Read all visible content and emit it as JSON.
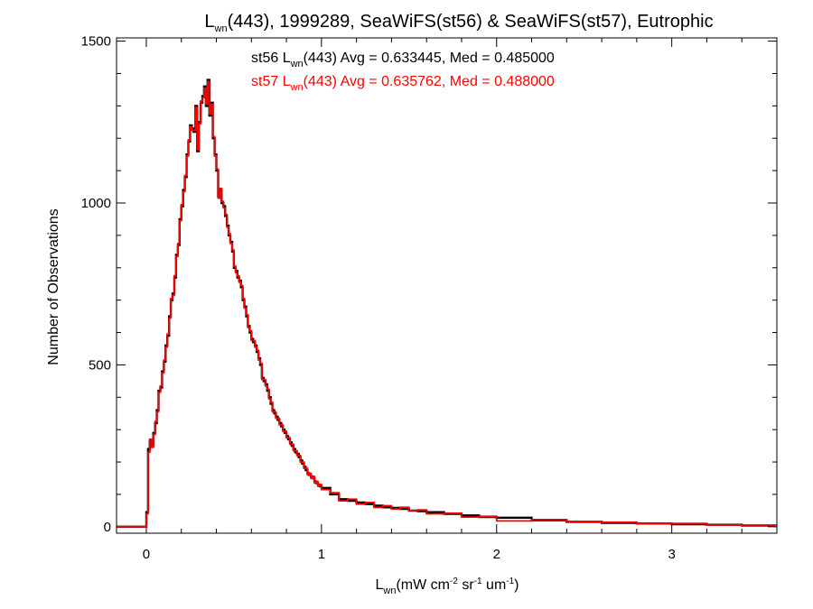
{
  "chart_data": {
    "type": "line",
    "title": {
      "pre": "L",
      "sub": "wn",
      "post": "(443), 1999289, SeaWiFS(st56) & SeaWiFS(st57), Eutrophic"
    },
    "xlabel": {
      "pre": "L",
      "sub": "wn",
      "units": [
        "(mW cm",
        "-2",
        " sr",
        "-1",
        " um",
        "-1",
        ")"
      ]
    },
    "ylabel": "Number of Observations",
    "xlim": [
      -0.17,
      3.6
    ],
    "ylim": [
      -20,
      1510
    ],
    "xticks": [
      0,
      1,
      2,
      3
    ],
    "yticks": [
      0,
      500,
      1000,
      1500
    ],
    "xtick_labels": [
      "0",
      "1",
      "2",
      "3"
    ],
    "ytick_labels": [
      "0",
      "500",
      "1000",
      "1500"
    ],
    "annotations": [
      {
        "pre": "st56 L",
        "sub": "wn",
        "post": "(443) Avg = 0.633445, Med = 0.485000",
        "color": "#000000"
      },
      {
        "pre": "st57 L",
        "sub": "wn",
        "post": "(443) Avg = 0.635762, Med = 0.488000",
        "color": "#ff0000"
      }
    ],
    "bin_width": 0.01,
    "series": [
      {
        "color": "#000000",
        "x": [
          0.0,
          0.01,
          0.02,
          0.03,
          0.04,
          0.05,
          0.06,
          0.07,
          0.08,
          0.09,
          0.1,
          0.11,
          0.12,
          0.13,
          0.14,
          0.15,
          0.16,
          0.17,
          0.18,
          0.19,
          0.2,
          0.21,
          0.22,
          0.23,
          0.24,
          0.25,
          0.26,
          0.27,
          0.28,
          0.29,
          0.3,
          0.31,
          0.32,
          0.33,
          0.34,
          0.35,
          0.36,
          0.37,
          0.38,
          0.39,
          0.4,
          0.41,
          0.42,
          0.43,
          0.44,
          0.45,
          0.46,
          0.47,
          0.48,
          0.49,
          0.5,
          0.51,
          0.52,
          0.53,
          0.54,
          0.55,
          0.56,
          0.57,
          0.58,
          0.59,
          0.6,
          0.61,
          0.62,
          0.63,
          0.64,
          0.65,
          0.66,
          0.67,
          0.68,
          0.69,
          0.7,
          0.71,
          0.72,
          0.73,
          0.74,
          0.75,
          0.76,
          0.77,
          0.78,
          0.79,
          0.8,
          0.81,
          0.82,
          0.83,
          0.84,
          0.85,
          0.86,
          0.87,
          0.88,
          0.89,
          0.9,
          0.91,
          0.92,
          0.93,
          0.94,
          0.95,
          0.96,
          0.97,
          0.98,
          0.99,
          1.0,
          1.05,
          1.1,
          1.15,
          1.2,
          1.25,
          1.3,
          1.35,
          1.4,
          1.45,
          1.5,
          1.55,
          1.6,
          1.7,
          1.8,
          1.9,
          2.0,
          2.2,
          2.4,
          2.6,
          2.8,
          3.0,
          3.2,
          3.4,
          3.59
        ],
        "y": [
          45,
          240,
          265,
          250,
          290,
          320,
          360,
          420,
          430,
          480,
          510,
          560,
          590,
          650,
          700,
          720,
          770,
          840,
          870,
          950,
          990,
          1040,
          1080,
          1150,
          1190,
          1240,
          1230,
          1220,
          1300,
          1160,
          1250,
          1310,
          1330,
          1360,
          1300,
          1380,
          1270,
          1310,
          1200,
          1150,
          1100,
          1020,
          1040,
          1000,
          990,
          960,
          930,
          900,
          880,
          850,
          800,
          790,
          770,
          760,
          740,
          700,
          680,
          650,
          620,
          600,
          580,
          570,
          560,
          540,
          520,
          500,
          460,
          450,
          440,
          420,
          400,
          380,
          360,
          350,
          340,
          330,
          320,
          310,
          300,
          290,
          280,
          270,
          260,
          250,
          240,
          230,
          225,
          215,
          205,
          195,
          185,
          175,
          165,
          160,
          155,
          150,
          140,
          135,
          130,
          125,
          120,
          100,
          85,
          80,
          75,
          70,
          65,
          60,
          58,
          55,
          50,
          48,
          45,
          40,
          35,
          30,
          28,
          20,
          15,
          12,
          10,
          8,
          6,
          4,
          2
        ],
        "step_draw": false
      },
      {
        "color": "#ff0000",
        "x": [
          0.0,
          0.01,
          0.02,
          0.03,
          0.04,
          0.05,
          0.06,
          0.07,
          0.08,
          0.09,
          0.1,
          0.11,
          0.12,
          0.13,
          0.14,
          0.15,
          0.16,
          0.17,
          0.18,
          0.19,
          0.2,
          0.21,
          0.22,
          0.23,
          0.24,
          0.25,
          0.26,
          0.27,
          0.28,
          0.29,
          0.3,
          0.31,
          0.32,
          0.33,
          0.34,
          0.35,
          0.36,
          0.37,
          0.38,
          0.39,
          0.4,
          0.41,
          0.42,
          0.43,
          0.44,
          0.45,
          0.46,
          0.47,
          0.48,
          0.49,
          0.5,
          0.51,
          0.52,
          0.53,
          0.54,
          0.55,
          0.56,
          0.57,
          0.58,
          0.59,
          0.6,
          0.61,
          0.62,
          0.63,
          0.64,
          0.65,
          0.66,
          0.67,
          0.68,
          0.69,
          0.7,
          0.71,
          0.72,
          0.73,
          0.74,
          0.75,
          0.76,
          0.77,
          0.78,
          0.79,
          0.8,
          0.81,
          0.82,
          0.83,
          0.84,
          0.85,
          0.86,
          0.87,
          0.88,
          0.89,
          0.9,
          0.91,
          0.92,
          0.93,
          0.94,
          0.95,
          0.96,
          0.97,
          0.98,
          0.99,
          1.0,
          1.05,
          1.1,
          1.15,
          1.2,
          1.25,
          1.3,
          1.35,
          1.4,
          1.45,
          1.5,
          1.55,
          1.6,
          1.7,
          1.8,
          1.9,
          2.0,
          2.2,
          2.4,
          2.6,
          2.8,
          3.0,
          3.2,
          3.4,
          3.59
        ],
        "y": [
          40,
          230,
          270,
          245,
          285,
          325,
          355,
          415,
          435,
          475,
          515,
          555,
          595,
          645,
          705,
          715,
          775,
          835,
          875,
          945,
          995,
          1035,
          1085,
          1145,
          1195,
          1235,
          1225,
          1225,
          1295,
          1165,
          1245,
          1315,
          1325,
          1355,
          1305,
          1375,
          1275,
          1305,
          1205,
          1145,
          1105,
          1015,
          1045,
          1005,
          985,
          965,
          925,
          905,
          875,
          855,
          805,
          785,
          775,
          755,
          745,
          705,
          675,
          655,
          615,
          605,
          575,
          575,
          555,
          545,
          515,
          505,
          455,
          455,
          435,
          425,
          395,
          385,
          355,
          355,
          335,
          335,
          315,
          315,
          295,
          295,
          275,
          275,
          255,
          255,
          235,
          235,
          220,
          220,
          200,
          200,
          180,
          180,
          160,
          165,
          150,
          155,
          135,
          140,
          125,
          130,
          115,
          105,
          80,
          85,
          70,
          75,
          60,
          65,
          55,
          60,
          50,
          52,
          40,
          42,
          30,
          32,
          18,
          22,
          14,
          14,
          10,
          10,
          5,
          5,
          2
        ],
        "step_draw": false
      }
    ]
  }
}
